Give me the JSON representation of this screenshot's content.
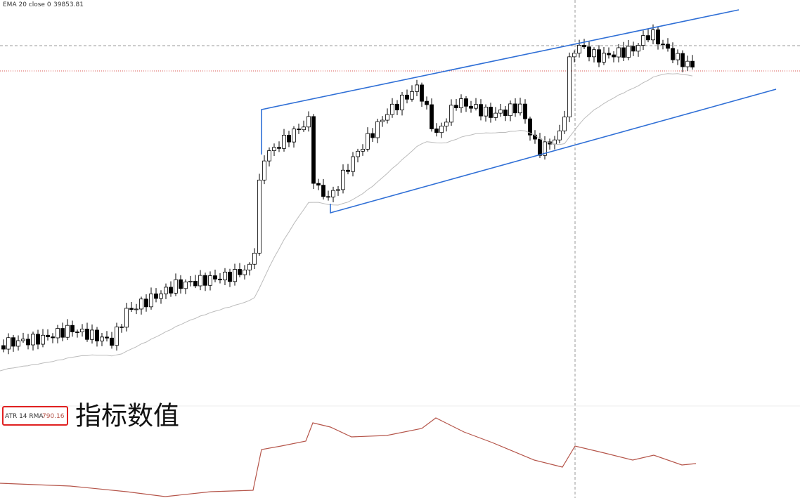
{
  "header": {
    "ema_label": "EMA 20 close 0",
    "ema_value": "39853.81"
  },
  "indicator": {
    "atr_label": "ATR 14 RMA",
    "atr_value": "790.16",
    "annotation": "指标数值"
  }
}
